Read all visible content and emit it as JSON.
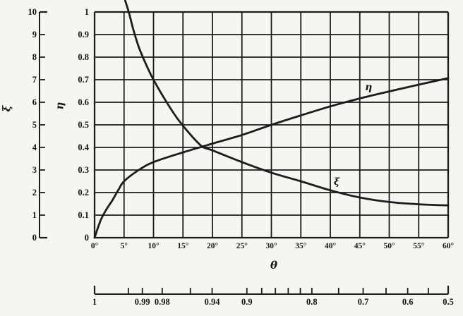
{
  "chart_data": {
    "type": "line",
    "title": "",
    "theta_axis": {
      "label": "θ",
      "range_deg": [
        0,
        60
      ],
      "tick_step_deg": 5,
      "tick_labels": [
        "0°",
        "5°",
        "10°",
        "15°",
        "20°",
        "25°",
        "30°",
        "35°",
        "40°",
        "45°",
        "50°",
        "55°",
        "60°"
      ]
    },
    "xi_axis": {
      "label": "ξ",
      "range": [
        0,
        10
      ],
      "tick_labels": [
        "0",
        "1",
        "2",
        "3",
        "4",
        "5",
        "6",
        "7",
        "8",
        "9",
        "10"
      ]
    },
    "eta_axis": {
      "label": "η",
      "range": [
        0,
        1
      ],
      "tick_labels": [
        "0",
        "0.1",
        "0.2",
        "0.3",
        "0.4",
        "0.5",
        "0.6",
        "0.7",
        "0.8",
        "0.9",
        "1"
      ]
    },
    "cos_axis": {
      "relation": "cos(θ), nonlinear auxiliary scale below chart",
      "ticks": [
        {
          "v": 1.0,
          "label": "1"
        },
        {
          "v": 0.995,
          "label": ""
        },
        {
          "v": 0.99,
          "label": "0.99"
        },
        {
          "v": 0.98,
          "label": "0.98"
        },
        {
          "v": 0.96,
          "label": ""
        },
        {
          "v": 0.94,
          "label": "0.94"
        },
        {
          "v": 0.9,
          "label": "0.9"
        },
        {
          "v": 0.88,
          "label": ""
        },
        {
          "v": 0.86,
          "label": ""
        },
        {
          "v": 0.84,
          "label": ""
        },
        {
          "v": 0.82,
          "label": ""
        },
        {
          "v": 0.8,
          "label": "0.8"
        },
        {
          "v": 0.75,
          "label": ""
        },
        {
          "v": 0.7,
          "label": "0.7"
        },
        {
          "v": 0.65,
          "label": ""
        },
        {
          "v": 0.6,
          "label": "0.6"
        },
        {
          "v": 0.55,
          "label": ""
        },
        {
          "v": 0.5,
          "label": "0.5"
        }
      ]
    },
    "grid": {
      "on": true,
      "x_step_deg": 5,
      "eta_step": 0.1
    },
    "series": [
      {
        "name": "η",
        "axis": "eta",
        "theta_deg": [
          0,
          1,
          2,
          3,
          4,
          5,
          7.5,
          10,
          15,
          20,
          25,
          30,
          35,
          40,
          45,
          50,
          55,
          60
        ],
        "values": [
          0,
          0.075,
          0.125,
          0.165,
          0.21,
          0.25,
          0.3,
          0.335,
          0.378,
          0.417,
          0.455,
          0.5,
          0.542,
          0.582,
          0.617,
          0.648,
          0.678,
          0.707
        ],
        "label_pos": {
          "theta_deg": 46.6,
          "value": 0.662
        }
      },
      {
        "name": "ξ",
        "axis": "xi",
        "theta_deg": [
          5.2,
          5.8,
          6.6,
          7.5,
          8.7,
          10,
          12,
          14,
          16,
          18.2,
          20,
          25,
          30,
          35,
          40,
          45,
          50,
          55,
          60
        ],
        "values": [
          10.5,
          10.0,
          9.2,
          8.45,
          7.7,
          7.0,
          6.1,
          5.3,
          4.65,
          4.05,
          3.87,
          3.35,
          2.88,
          2.5,
          2.1,
          1.78,
          1.58,
          1.48,
          1.43
        ],
        "label_pos": {
          "theta_deg": 41.3,
          "value": 2.45
        }
      }
    ],
    "crossing_point": {
      "theta_deg": 18.2,
      "eta": 0.405,
      "xi": 4.05
    },
    "ink_color": "#1c1c1c",
    "paper_color": "#f6f5f1"
  }
}
